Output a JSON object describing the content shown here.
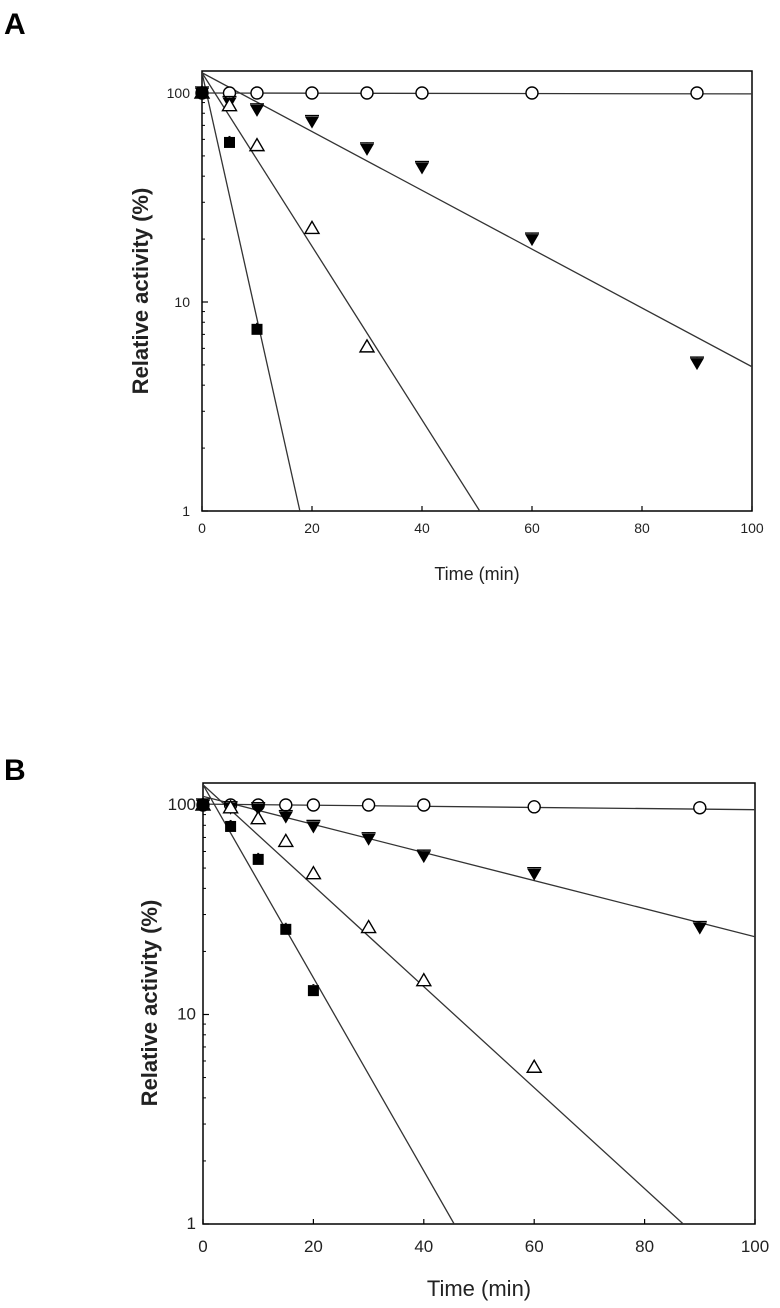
{
  "panels": [
    {
      "label": "A",
      "chart_data": {
        "type": "scatter",
        "xlabel": "Time (min)",
        "ylabel": "Relative activity (%)",
        "xlim": [
          0,
          100
        ],
        "ylim": [
          1,
          130
        ],
        "yscale": "log",
        "x_ticks": [
          0,
          20,
          40,
          60,
          80,
          100
        ],
        "x_tick_labels": [
          "0",
          "20",
          "40",
          "60",
          "80",
          "100"
        ],
        "y_ticks": [
          1,
          10,
          100
        ],
        "y_tick_labels": [
          "1",
          "10",
          "100"
        ],
        "grid": false,
        "legend": "none",
        "series": [
          {
            "marker": "open-circle",
            "x": [
              0,
              5,
              10,
              20,
              30,
              40,
              60,
              90
            ],
            "y": [
              100,
              100,
              100,
              100,
              100,
              100,
              100,
              100
            ],
            "fit": {
              "x0": 0,
              "y0": 100,
              "x1": 100,
              "y1": 99
            }
          },
          {
            "marker": "filled-triangle-down",
            "x": [
              0,
              5,
              10,
              20,
              30,
              40,
              60,
              90
            ],
            "y": [
              100,
              90,
              83,
              73,
              54,
              44,
              20,
              5.1
            ],
            "fit": {
              "x0": 0,
              "y0": 125,
              "x1": 100,
              "y1": 4.9
            }
          },
          {
            "marker": "open-triangle-up",
            "x": [
              0,
              5,
              10,
              20,
              30
            ],
            "y": [
              100,
              87,
              56,
              22.5,
              6.1
            ],
            "fit": {
              "x0": 0,
              "y0": 125,
              "x1": 50.5,
              "y1": 1
            }
          },
          {
            "marker": "filled-square",
            "x": [
              0,
              5,
              10
            ],
            "y": [
              100,
              58,
              7.4
            ],
            "fit": {
              "x0": 0,
              "y0": 125,
              "x1": 17.8,
              "y1": 1
            }
          }
        ]
      }
    },
    {
      "label": "B",
      "chart_data": {
        "type": "scatter",
        "xlabel": "Time (min)",
        "ylabel": "Relative activity (%)",
        "xlim": [
          0,
          100
        ],
        "ylim": [
          1,
          130
        ],
        "yscale": "log",
        "x_ticks": [
          0,
          20,
          40,
          60,
          80,
          100
        ],
        "x_tick_labels": [
          "0",
          "20",
          "40",
          "60",
          "80",
          "100"
        ],
        "y_ticks": [
          1,
          10,
          100
        ],
        "y_tick_labels": [
          "1",
          "10",
          "100"
        ],
        "grid": false,
        "legend": "none",
        "series": [
          {
            "marker": "open-circle",
            "x": [
              0,
              5,
              10,
              15,
              20,
              30,
              40,
              60,
              90
            ],
            "y": [
              100,
              100,
              100,
              100,
              100,
              100,
              100,
              98,
              97
            ],
            "fit": {
              "x0": 0,
              "y0": 101,
              "x1": 100,
              "y1": 95
            }
          },
          {
            "marker": "filled-triangle-down",
            "x": [
              0,
              5,
              10,
              15,
              20,
              30,
              40,
              60,
              90
            ],
            "y": [
              100,
              97,
              96,
              88,
              79,
              69,
              57,
              47,
              26
            ],
            "fit": {
              "x0": 0,
              "y0": 110,
              "x1": 100,
              "y1": 23.5
            }
          },
          {
            "marker": "open-triangle-up",
            "x": [
              0,
              5,
              10,
              15,
              20,
              30,
              40,
              60
            ],
            "y": [
              100,
              97,
              86,
              67,
              47,
              26,
              14.5,
              5.6
            ],
            "fit": {
              "x0": 0,
              "y0": 125,
              "x1": 87,
              "y1": 1
            }
          },
          {
            "marker": "filled-square",
            "x": [
              0,
              5,
              10,
              15,
              20
            ],
            "y": [
              100,
              79,
              55,
              25.5,
              13
            ],
            "fit": {
              "x0": 0,
              "y0": 125,
              "x1": 45.5,
              "y1": 1
            }
          }
        ]
      }
    }
  ]
}
